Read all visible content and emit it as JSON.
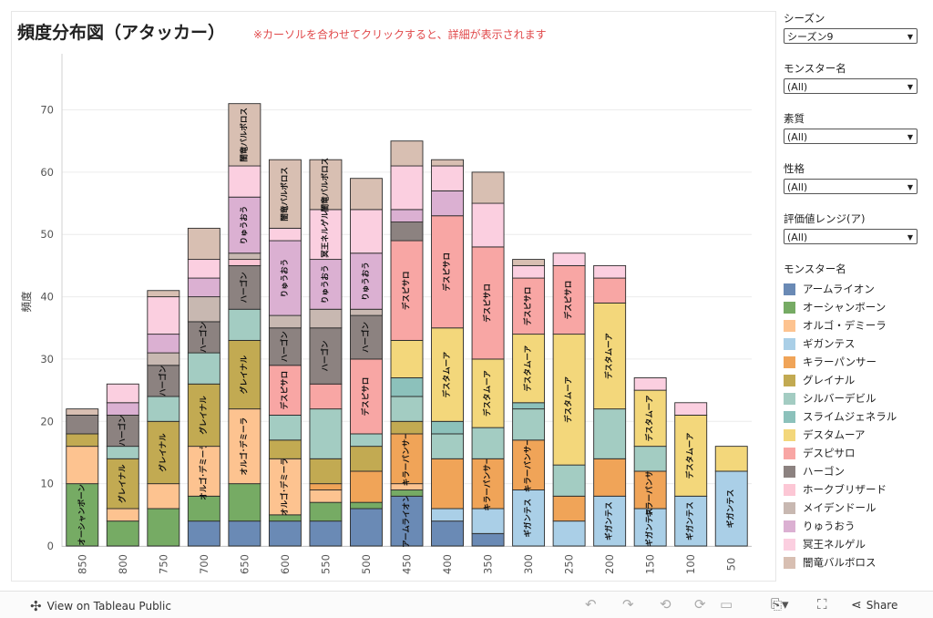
{
  "title": "頻度分布図（アタッカー）",
  "hint": "※カーソルを合わせてクリックすると、詳細が表示されます",
  "filters": [
    {
      "label": "シーズン",
      "value": "シーズン9"
    },
    {
      "label": "モンスター名",
      "value": "(All)"
    },
    {
      "label": "素質",
      "value": "(All)"
    },
    {
      "label": "性格",
      "value": "(All)"
    },
    {
      "label": "評価値レンジ(ア)",
      "value": "(All)"
    }
  ],
  "legend_title": "モンスター名",
  "footer": {
    "tableau_link": "View on Tableau Public",
    "share": "Share"
  },
  "chart_data": {
    "type": "bar",
    "stacked": true,
    "ylabel": "頻度",
    "xlabel": "",
    "ylim": [
      0,
      79
    ],
    "yticks": [
      0,
      10,
      20,
      30,
      40,
      50,
      60,
      70
    ],
    "grid": true,
    "legend_position": "right",
    "categories": [
      "850",
      "800",
      "750",
      "700",
      "650",
      "600",
      "550",
      "500",
      "450",
      "400",
      "350",
      "300",
      "250",
      "200",
      "150",
      "100",
      "50"
    ],
    "series": [
      {
        "name": "アームライオン",
        "color": "#6a8ab5",
        "values": [
          0,
          0,
          0,
          4,
          4,
          4,
          4,
          6,
          8,
          4,
          2,
          0,
          0,
          0,
          0,
          0,
          0
        ]
      },
      {
        "name": "オーシャンボーン",
        "color": "#76ab64",
        "values": [
          10,
          4,
          6,
          4,
          6,
          1,
          3,
          1,
          1,
          0,
          0,
          0,
          0,
          0,
          0,
          0,
          0
        ]
      },
      {
        "name": "オルゴ・デミーラ",
        "color": "#fdc390",
        "values": [
          6,
          2,
          4,
          8,
          12,
          9,
          2,
          0,
          1,
          0,
          0,
          0,
          0,
          0,
          0,
          0,
          0
        ]
      },
      {
        "name": "ギガンテス",
        "color": "#aacfe7",
        "values": [
          0,
          0,
          0,
          0,
          0,
          0,
          0,
          0,
          0,
          2,
          4,
          9,
          4,
          8,
          6,
          8,
          12
        ]
      },
      {
        "name": "キラーパンサー",
        "color": "#f0a458",
        "values": [
          0,
          0,
          0,
          0,
          0,
          0,
          1,
          5,
          8,
          8,
          8,
          8,
          4,
          6,
          6,
          0,
          0
        ]
      },
      {
        "name": "グレイナル",
        "color": "#c2aa52",
        "values": [
          2,
          8,
          10,
          10,
          11,
          3,
          4,
          4,
          2,
          0,
          0,
          0,
          0,
          0,
          0,
          0,
          0
        ]
      },
      {
        "name": "シルバーデビル",
        "color": "#a3ccc2",
        "values": [
          0,
          2,
          4,
          5,
          5,
          4,
          8,
          2,
          4,
          4,
          5,
          5,
          5,
          8,
          4,
          0,
          0
        ]
      },
      {
        "name": "スライムジェネラル",
        "color": "#8cc1bb",
        "values": [
          0,
          0,
          0,
          0,
          0,
          0,
          0,
          0,
          3,
          2,
          0,
          1,
          0,
          0,
          0,
          0,
          0
        ]
      },
      {
        "name": "デスタムーア",
        "color": "#f3d77b",
        "values": [
          0,
          0,
          0,
          0,
          0,
          0,
          0,
          0,
          6,
          15,
          11,
          11,
          21,
          17,
          9,
          13,
          4
        ]
      },
      {
        "name": "デスピサロ",
        "color": "#f8a6a4",
        "values": [
          0,
          0,
          0,
          0,
          0,
          8,
          4,
          12,
          16,
          18,
          18,
          9,
          11,
          4,
          0,
          0,
          0
        ]
      },
      {
        "name": "ハーゴン",
        "color": "#8c8280",
        "values": [
          3,
          5,
          5,
          5,
          7,
          6,
          9,
          7,
          3,
          0,
          0,
          0,
          0,
          0,
          0,
          0,
          0
        ]
      },
      {
        "name": "ホークブリザード",
        "color": "#fcc7d5",
        "values": [
          0,
          0,
          0,
          0,
          1,
          0,
          0,
          0,
          0,
          0,
          0,
          0,
          0,
          0,
          0,
          0,
          0
        ]
      },
      {
        "name": "メイデンドール",
        "color": "#c8b8b1",
        "values": [
          0,
          0,
          2,
          4,
          1,
          2,
          3,
          1,
          0,
          0,
          0,
          0,
          0,
          0,
          0,
          0,
          0
        ]
      },
      {
        "name": "りゅうおう",
        "color": "#dbb0d2",
        "values": [
          0,
          2,
          3,
          3,
          9,
          12,
          8,
          9,
          2,
          4,
          0,
          0,
          0,
          0,
          0,
          0,
          0
        ]
      },
      {
        "name": "冥王ネルゲル",
        "color": "#fbcfe0",
        "values": [
          0,
          3,
          6,
          3,
          5,
          2,
          8,
          7,
          7,
          4,
          7,
          2,
          2,
          2,
          2,
          2,
          0
        ]
      },
      {
        "name": "闇竜バルボロス",
        "color": "#d8bfb2",
        "values": [
          1,
          0,
          1,
          5,
          10,
          11,
          8,
          5,
          4,
          1,
          5,
          1,
          0,
          0,
          0,
          0,
          0
        ]
      }
    ],
    "bar_labels": [
      {
        "category": "850",
        "series": "オーシャンボーン",
        "text": "オーシャンボーン"
      },
      {
        "category": "800",
        "series": "グレイナル",
        "text": "グレイナル"
      },
      {
        "category": "800",
        "series": "ハーゴン",
        "text": "ハーゴン"
      },
      {
        "category": "750",
        "series": "グレイナル",
        "text": "グレイナル"
      },
      {
        "category": "750",
        "series": "ハーゴン",
        "text": "ハーゴン"
      },
      {
        "category": "700",
        "series": "オルゴ・デミーラ",
        "text": "オルゴ･デミーラ"
      },
      {
        "category": "700",
        "series": "グレイナル",
        "text": "グレイナル"
      },
      {
        "category": "700",
        "series": "ハーゴン",
        "text": "ハーゴン"
      },
      {
        "category": "650",
        "series": "オルゴ・デミーラ",
        "text": "オルゴ･デミーラ"
      },
      {
        "category": "650",
        "series": "グレイナル",
        "text": "グレイナル"
      },
      {
        "category": "650",
        "series": "ハーゴン",
        "text": "ハーゴン"
      },
      {
        "category": "650",
        "series": "りゅうおう",
        "text": "りゅうおう"
      },
      {
        "category": "650",
        "series": "闇竜バルボロス",
        "text": "闇竜バルボロス"
      },
      {
        "category": "600",
        "series": "オルゴ・デミーラ",
        "text": "オルゴ･デミーラ"
      },
      {
        "category": "600",
        "series": "デスピサロ",
        "text": "デスピサロ"
      },
      {
        "category": "600",
        "series": "ハーゴン",
        "text": "ハーゴン"
      },
      {
        "category": "600",
        "series": "りゅうおう",
        "text": "りゅうおう"
      },
      {
        "category": "600",
        "series": "闇竜バルボロス",
        "text": "闇竜バルボロス"
      },
      {
        "category": "550",
        "series": "ハーゴン",
        "text": "ハーゴン"
      },
      {
        "category": "550",
        "series": "りゅうおう",
        "text": "りゅうおう"
      },
      {
        "category": "550",
        "series": "冥王ネルゲル",
        "text": "冥王ネルゲル"
      },
      {
        "category": "550",
        "series": "闇竜バルボロス",
        "text": "闇竜バルボロス"
      },
      {
        "category": "500",
        "series": "デスピサロ",
        "text": "デスピサロ"
      },
      {
        "category": "500",
        "series": "ハーゴン",
        "text": "ハーゴン"
      },
      {
        "category": "500",
        "series": "りゅうおう",
        "text": "りゅうおう"
      },
      {
        "category": "450",
        "series": "アームライオン",
        "text": "アームライオン"
      },
      {
        "category": "450",
        "series": "キラーパンサー",
        "text": "キラーパンサー"
      },
      {
        "category": "450",
        "series": "デスピサロ",
        "text": "デスピサロ"
      },
      {
        "category": "400",
        "series": "デスタムーア",
        "text": "デスタムーア"
      },
      {
        "category": "400",
        "series": "デスピサロ",
        "text": "デスピサロ"
      },
      {
        "category": "350",
        "series": "キラーパンサー",
        "text": "キラーパンサー"
      },
      {
        "category": "350",
        "series": "デスタムーア",
        "text": "デスタムーア"
      },
      {
        "category": "350",
        "series": "デスピサロ",
        "text": "デスピサロ"
      },
      {
        "category": "300",
        "series": "ギガンテス",
        "text": "ギガンテス"
      },
      {
        "category": "300",
        "series": "キラーパンサー",
        "text": "キラーパンサー"
      },
      {
        "category": "300",
        "series": "デスタムーア",
        "text": "デスタムーア"
      },
      {
        "category": "300",
        "series": "デスピサロ",
        "text": "デスピサロ"
      },
      {
        "category": "250",
        "series": "デスタムーア",
        "text": "デスタムーア"
      },
      {
        "category": "250",
        "series": "デスピサロ",
        "text": "デスピサロ"
      },
      {
        "category": "200",
        "series": "ギガンテス",
        "text": "ギガンテス"
      },
      {
        "category": "200",
        "series": "デスタムーア",
        "text": "デスタムーア"
      },
      {
        "category": "150",
        "series": "ギガンテス",
        "text": "ギガンテス"
      },
      {
        "category": "150",
        "series": "キラーパンサー",
        "text": "キラーパンサー"
      },
      {
        "category": "150",
        "series": "デスタムーア",
        "text": "デスタムーア"
      },
      {
        "category": "100",
        "series": "ギガンテス",
        "text": "ギガンテス"
      },
      {
        "category": "100",
        "series": "デスタムーア",
        "text": "デスタムーア"
      },
      {
        "category": "50",
        "series": "ギガンテス",
        "text": "ギガンテス"
      }
    ]
  }
}
